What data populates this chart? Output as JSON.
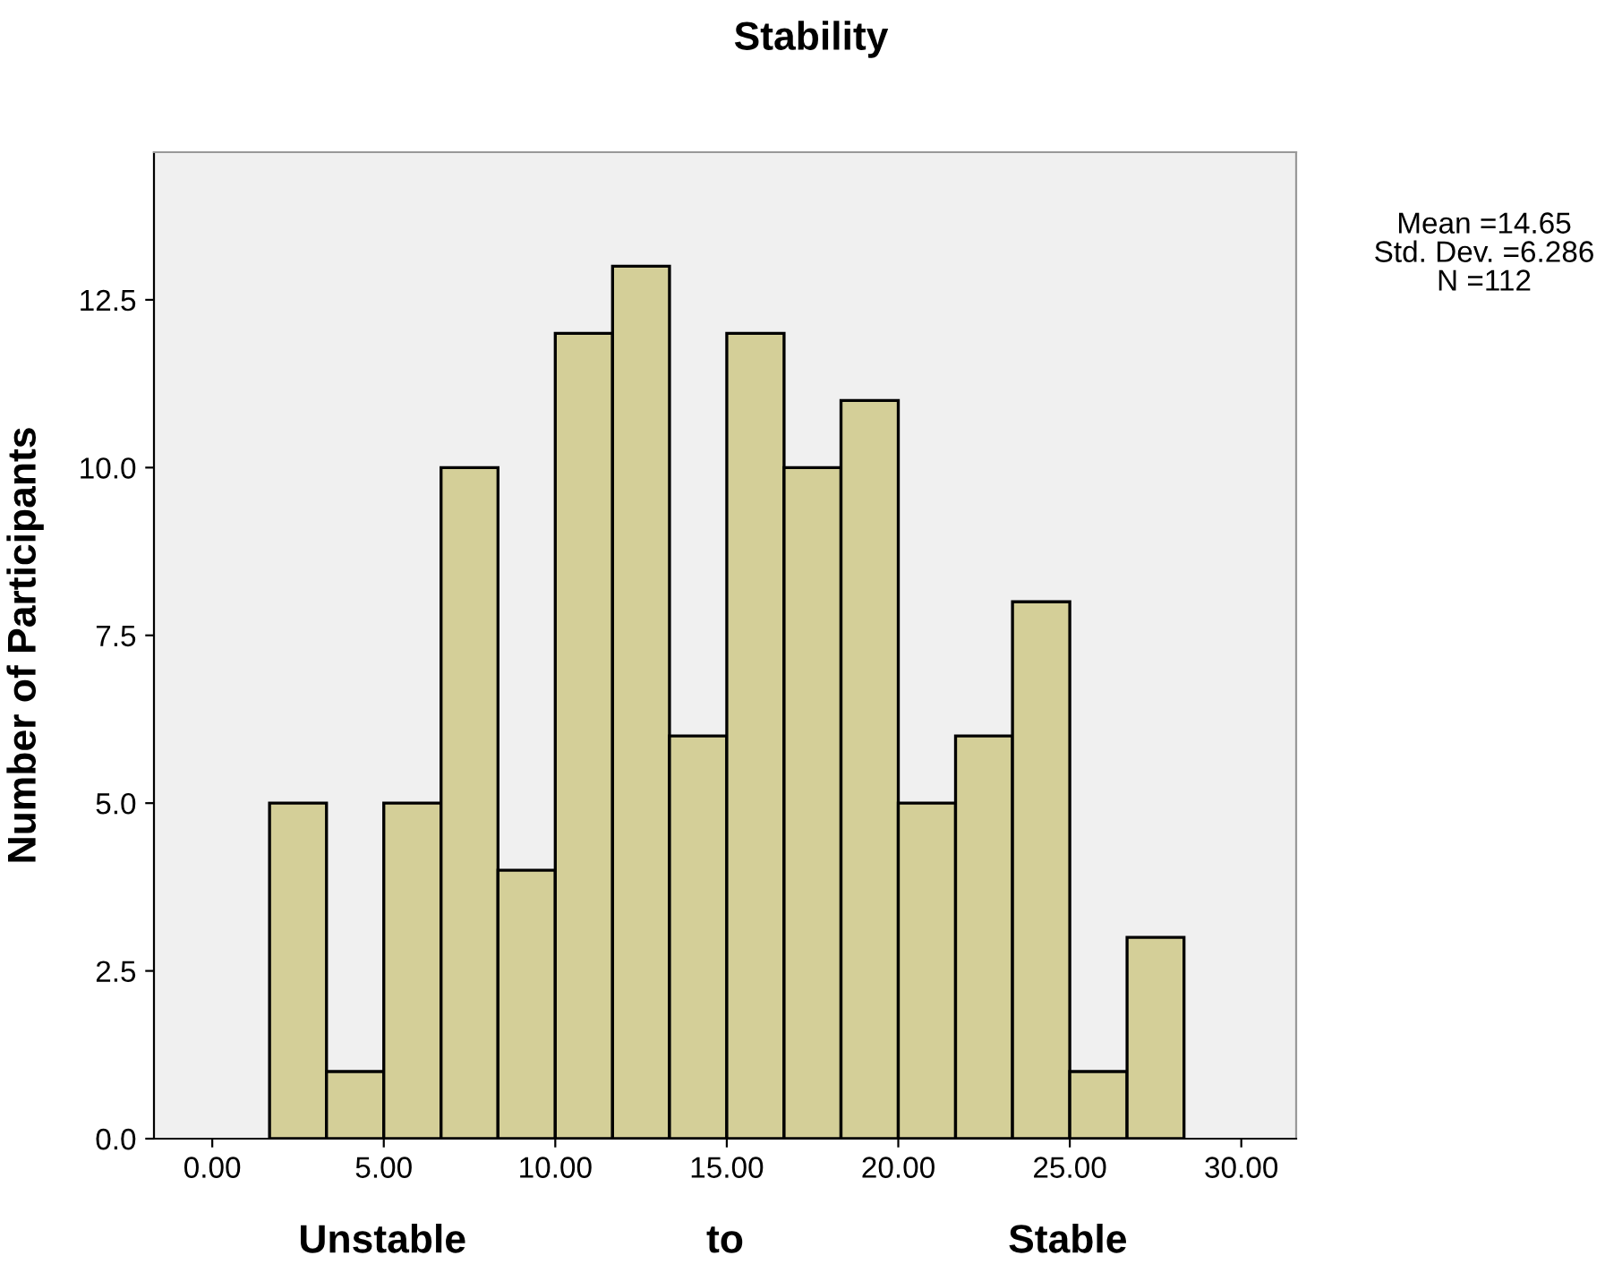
{
  "chart_data": {
    "type": "histogram",
    "title": "Stability",
    "xlabel": "Unstable to Stable",
    "ylabel": "Number of Participants",
    "bins": [
      1.67,
      3.33,
      5.0,
      6.67,
      8.33,
      10.0,
      11.67,
      13.33,
      15.0,
      16.67,
      18.33,
      20.0,
      21.67,
      23.33,
      25.0,
      26.67,
      28.33
    ],
    "values": [
      5,
      1,
      5,
      10,
      4,
      12,
      13,
      6,
      12,
      10,
      11,
      5,
      6,
      8,
      1,
      3
    ],
    "color": "#d4cf98",
    "xlim": [
      -1.7,
      31.6
    ],
    "ylim": [
      0,
      14.7
    ],
    "xticks": [
      {
        "value": 0,
        "label": "0.00"
      },
      {
        "value": 5,
        "label": "5.00"
      },
      {
        "value": 10,
        "label": "10.00"
      },
      {
        "value": 15,
        "label": "15.00"
      },
      {
        "value": 20,
        "label": "20.00"
      },
      {
        "value": 25,
        "label": "25.00"
      },
      {
        "value": 30,
        "label": "30.00"
      }
    ],
    "yticks": [
      {
        "value": 0,
        "label": "0.0"
      },
      {
        "value": 2.5,
        "label": "2.5"
      },
      {
        "value": 5,
        "label": "5.0"
      },
      {
        "value": 7.5,
        "label": "7.5"
      },
      {
        "value": 10,
        "label": "10.0"
      },
      {
        "value": 12.5,
        "label": "12.5"
      }
    ],
    "grid": false,
    "legend": false,
    "annotations": [
      "Mean =14.65",
      "Std. Dev. =6.286",
      "N =112"
    ]
  }
}
